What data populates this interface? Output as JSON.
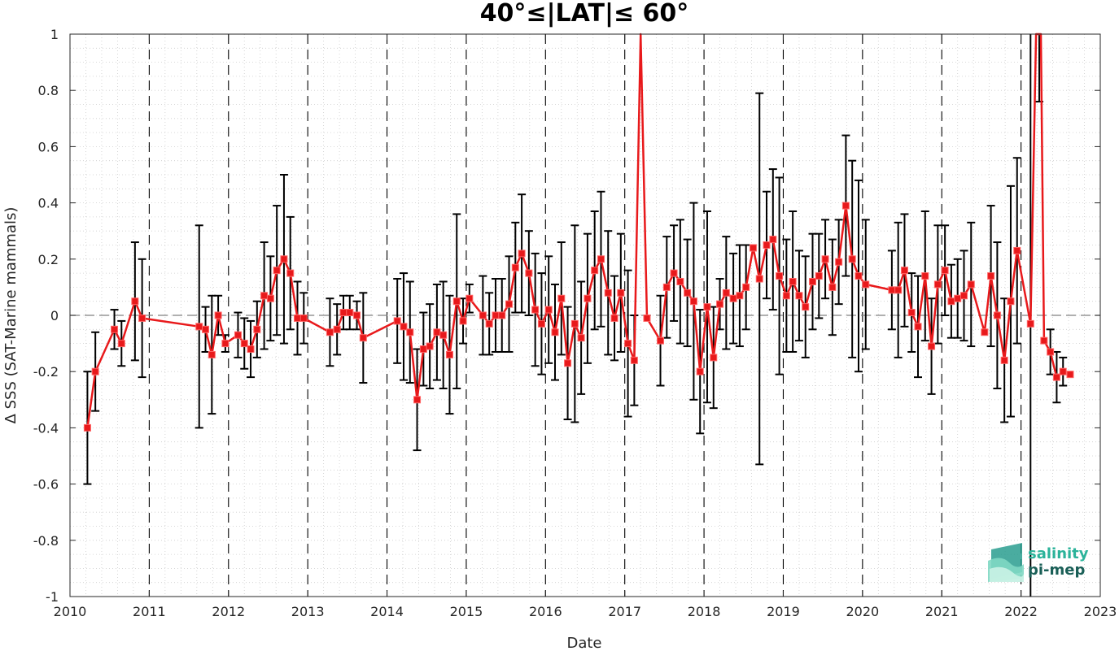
{
  "chart_data": {
    "type": "line",
    "title": "40°≤|LAT|≤ 60°",
    "xlabel": "Date",
    "ylabel": "Δ SSS (SAT-Marine mammals)",
    "xlim": [
      2010,
      2023
    ],
    "ylim": [
      -1,
      1
    ],
    "x_ticks": [
      "2010",
      "2011",
      "2012",
      "2013",
      "2014",
      "2015",
      "2016",
      "2017",
      "2018",
      "2019",
      "2020",
      "2021",
      "2022",
      "2023"
    ],
    "y_ticks": [
      "-1",
      "-0.8",
      "-0.6",
      "-0.4",
      "-0.2",
      "0",
      "0.2",
      "0.4",
      "0.6",
      "0.8",
      "1"
    ],
    "grid": "dotted minor grid, dashed vertical lines at year starts, dashed line at y=0",
    "series": [
      {
        "color": "#e8191b",
        "marker": "square",
        "x": [
          2010.22,
          2010.32,
          2010.56,
          2010.65,
          2010.82,
          2010.91,
          2011.63,
          2011.71,
          2011.79,
          2011.87,
          2011.96,
          2012.12,
          2012.2,
          2012.28,
          2012.36,
          2012.45,
          2012.53,
          2012.61,
          2012.7,
          2012.78,
          2012.87,
          2012.95,
          2013.28,
          2013.37,
          2013.45,
          2013.53,
          2013.62,
          2013.7,
          2014.13,
          2014.21,
          2014.29,
          2014.38,
          2014.46,
          2014.54,
          2014.63,
          2014.71,
          2014.79,
          2014.88,
          2014.96,
          2015.04,
          2015.21,
          2015.29,
          2015.37,
          2015.45,
          2015.54,
          2015.62,
          2015.7,
          2015.79,
          2015.87,
          2015.95,
          2016.04,
          2016.12,
          2016.2,
          2016.28,
          2016.37,
          2016.45,
          2016.53,
          2016.62,
          2016.7,
          2016.79,
          2016.87,
          2016.95,
          2017.04,
          2017.12,
          2017.2,
          2017.28,
          2017.45,
          2017.53,
          2017.62,
          2017.7,
          2017.79,
          2017.87,
          2017.95,
          2018.04,
          2018.12,
          2018.2,
          2018.28,
          2018.37,
          2018.45,
          2018.53,
          2018.62,
          2018.7,
          2018.79,
          2018.87,
          2018.95,
          2019.04,
          2019.12,
          2019.2,
          2019.28,
          2019.37,
          2019.45,
          2019.53,
          2019.62,
          2019.7,
          2019.79,
          2019.87,
          2019.95,
          2020.04,
          2020.37,
          2020.45,
          2020.53,
          2020.62,
          2020.7,
          2020.79,
          2020.87,
          2020.95,
          2021.04,
          2021.12,
          2021.2,
          2021.28,
          2021.37,
          2021.54,
          2021.62,
          2021.7,
          2021.79,
          2021.87,
          2021.95,
          2022.12,
          2022.29,
          2022.37,
          2022.45,
          2022.53,
          2022.62
        ],
        "y": [
          -0.4,
          -0.2,
          -0.05,
          -0.1,
          0.05,
          -0.01,
          -0.04,
          -0.05,
          -0.14,
          0.0,
          -0.1,
          -0.07,
          -0.1,
          -0.12,
          -0.05,
          0.07,
          0.06,
          0.16,
          0.2,
          0.15,
          -0.01,
          -0.01,
          -0.06,
          -0.05,
          0.01,
          0.01,
          0.0,
          -0.08,
          -0.02,
          -0.04,
          -0.06,
          -0.3,
          -0.12,
          -0.11,
          -0.06,
          -0.07,
          -0.14,
          0.05,
          -0.02,
          0.06,
          0.0,
          -0.03,
          0.0,
          0.0,
          0.04,
          0.17,
          0.22,
          0.15,
          0.02,
          -0.03,
          0.02,
          -0.06,
          0.06,
          -0.17,
          -0.03,
          -0.08,
          0.06,
          0.16,
          0.2,
          0.08,
          -0.01,
          0.08,
          -0.1,
          -0.16,
          1.0,
          -0.01,
          -0.09,
          0.1,
          0.15,
          0.12,
          0.08,
          0.05,
          -0.2,
          0.03,
          -0.15,
          0.04,
          0.08,
          0.06,
          0.07,
          0.1,
          0.24,
          0.13,
          0.25,
          0.27,
          0.14,
          0.07,
          0.12,
          0.07,
          0.03,
          0.12,
          0.14,
          0.2,
          0.1,
          0.19,
          0.39,
          0.2,
          0.14,
          0.11,
          0.09,
          0.09,
          0.16,
          0.01,
          -0.04,
          0.14,
          -0.11,
          0.11,
          0.16,
          0.05,
          0.06,
          0.07,
          0.11,
          -0.06,
          0.14,
          0.0,
          -0.16,
          0.05,
          0.23,
          -0.03,
          -0.09,
          -0.13,
          -0.22,
          -0.2,
          -0.21
        ],
        "err": [
          0.2,
          0.14,
          0.07,
          0.08,
          0.21,
          0.21,
          0.36,
          0.08,
          0.21,
          0.07,
          0.03,
          0.08,
          0.09,
          0.1,
          0.1,
          0.19,
          0.15,
          0.23,
          0.3,
          0.2,
          0.13,
          0.09,
          0.12,
          0.09,
          0.06,
          0.06,
          0.05,
          0.16,
          0.15,
          0.19,
          0.18,
          0.18,
          0.13,
          0.15,
          0.17,
          0.19,
          0.21,
          0.31,
          0.08,
          0.05,
          0.14,
          0.11,
          0.13,
          0.13,
          0.17,
          0.16,
          0.21,
          0.15,
          0.2,
          0.18,
          0.19,
          0.17,
          0.2,
          0.2,
          0.35,
          0.2,
          0.23,
          0.21,
          0.24,
          0.22,
          0.15,
          0.21,
          0.26,
          0.16,
          0.0,
          0.0,
          0.16,
          0.18,
          0.17,
          0.22,
          0.19,
          0.35,
          0.22,
          0.34,
          0.18,
          0.09,
          0.2,
          0.16,
          0.18,
          0.15,
          0.0,
          0.66,
          0.19,
          0.25,
          0.35,
          0.2,
          0.25,
          0.16,
          0.18,
          0.17,
          0.15,
          0.14,
          0.17,
          0.15,
          0.25,
          0.35,
          0.34,
          0.23,
          0.14,
          0.24,
          0.2,
          0.14,
          0.18,
          0.23,
          0.17,
          0.21,
          0.16,
          0.13,
          0.14,
          0.16,
          0.22,
          0.0,
          0.25,
          0.26,
          0.22,
          0.41,
          0.33,
          0.0,
          0.0,
          0.08,
          0.09,
          0.05,
          0.0
        ],
        "outlier_bars": [
          {
            "x": 2022.12,
            "ylow": -1.0,
            "yhigh": 1.0
          },
          {
            "x": 2022.23,
            "ylow": 0.76,
            "yhigh": 1.0
          }
        ]
      }
    ],
    "logo": {
      "line1": "salinity",
      "line2": "pi-mep"
    }
  }
}
